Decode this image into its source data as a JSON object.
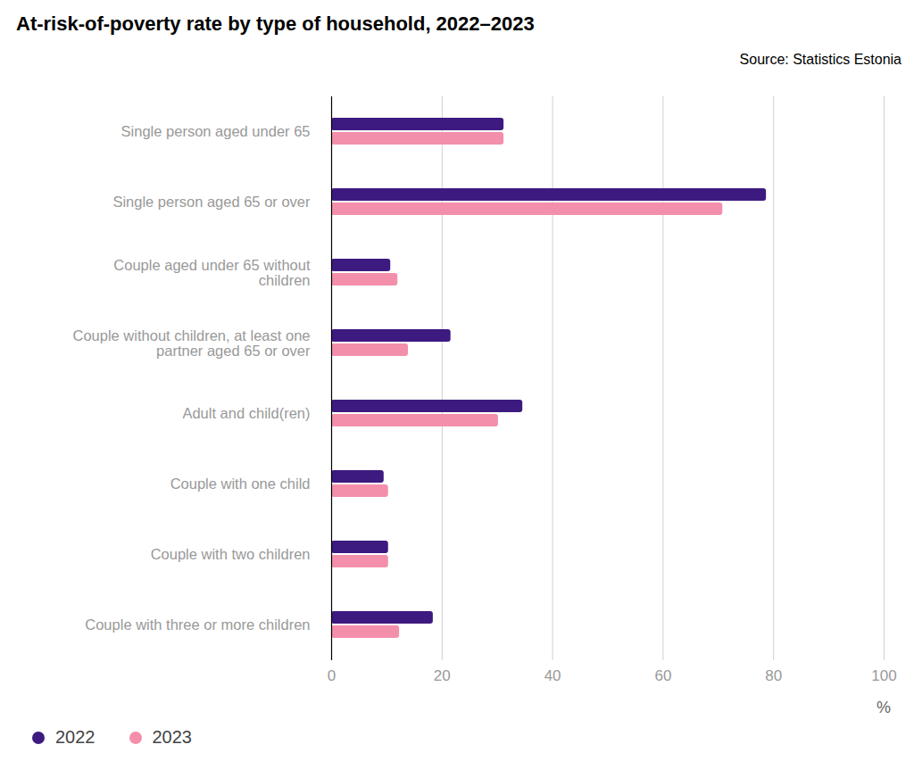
{
  "chart_data": {
    "type": "bar",
    "orientation": "horizontal",
    "title": "At-risk-of-poverty rate by type of household, 2022–2023",
    "source": "Source: Statistics Estonia",
    "x_label": "%",
    "categories": [
      "Single person aged under 65",
      "Single person aged 65 or over",
      "Couple aged under 65 without children",
      "Couple without children, at least one partner aged 65 or over",
      "Adult and child(ren)",
      "Couple with one child",
      "Couple with two children",
      "Couple with three or more children"
    ],
    "series": [
      {
        "name": "2022",
        "color": "#3d1a80",
        "values": [
          31.2,
          78.7,
          10.7,
          21.6,
          34.6,
          9.5,
          10.3,
          18.4
        ]
      },
      {
        "name": "2023",
        "color": "#f48fab",
        "values": [
          31.2,
          70.8,
          12.0,
          13.9,
          30.2,
          10.3,
          10.3,
          12.3
        ]
      }
    ],
    "xlim": [
      0,
      100
    ],
    "xticks": [
      0,
      20,
      40,
      60,
      80,
      100
    ],
    "grid": true,
    "legend": "bottom-left"
  }
}
